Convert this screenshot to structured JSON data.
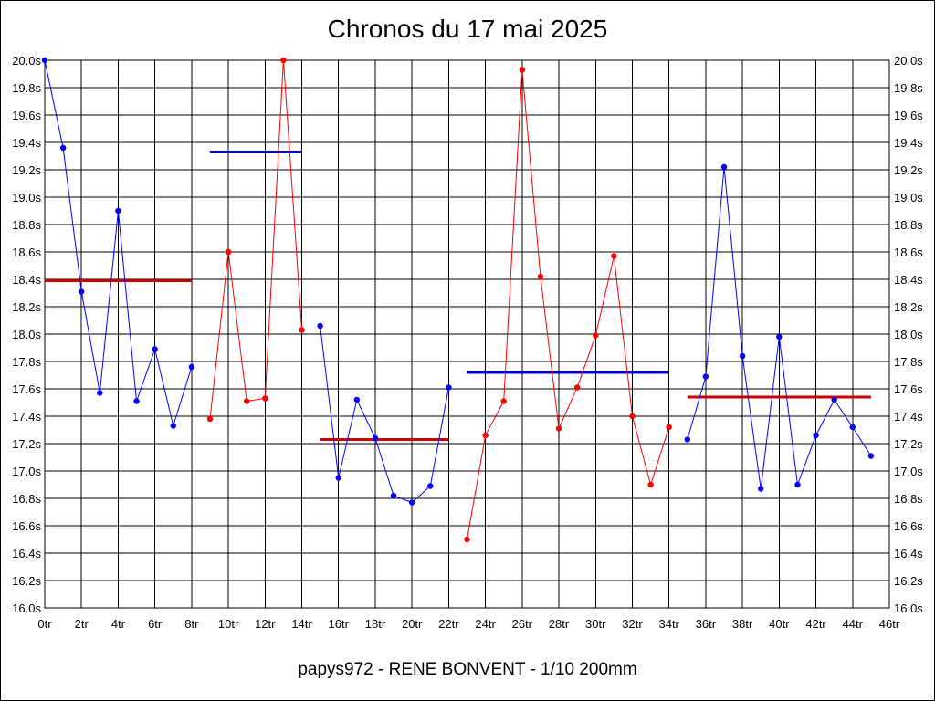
{
  "title": "Chronos du 17 mai 2025",
  "footer": "papys972 - RENE BONVENT - 1/10 200mm",
  "chart_data": {
    "type": "line",
    "title": "Chronos du 17 mai 2025",
    "xlabel": "",
    "ylabel": "",
    "xlim": [
      0,
      46
    ],
    "ylim": [
      16.0,
      20.0
    ],
    "grid": true,
    "x_ticks": [
      "0tr",
      "2tr",
      "4tr",
      "6tr",
      "8tr",
      "10tr",
      "12tr",
      "14tr",
      "16tr",
      "18tr",
      "20tr",
      "22tr",
      "24tr",
      "26tr",
      "28tr",
      "30tr",
      "32tr",
      "34tr",
      "36tr",
      "38tr",
      "40tr",
      "42tr",
      "44tr",
      "46tr"
    ],
    "y_ticks": [
      "16.0s",
      "16.2s",
      "16.4s",
      "16.6s",
      "16.8s",
      "17.0s",
      "17.2s",
      "17.4s",
      "17.6s",
      "17.8s",
      "18.0s",
      "18.2s",
      "18.4s",
      "18.6s",
      "18.8s",
      "19.0s",
      "19.2s",
      "19.4s",
      "19.6s",
      "19.8s",
      "20.0s"
    ],
    "series": [
      {
        "color": "#0000ff",
        "x": [
          0,
          1,
          2,
          3,
          4,
          5,
          6,
          7,
          8
        ],
        "y": [
          20.0,
          19.36,
          18.31,
          17.57,
          18.9,
          17.51,
          17.89,
          17.33,
          17.76
        ]
      },
      {
        "color": "#ff0000",
        "x": [
          9,
          10,
          11,
          12,
          13,
          14
        ],
        "y": [
          17.38,
          18.6,
          17.51,
          17.53,
          20.0,
          18.03
        ]
      },
      {
        "color": "#0000ff",
        "x": [
          15,
          16,
          17,
          18,
          19,
          20,
          21,
          22
        ],
        "y": [
          18.06,
          16.95,
          17.52,
          17.24,
          16.82,
          16.77,
          16.89,
          17.61
        ]
      },
      {
        "color": "#ff0000",
        "x": [
          23,
          24,
          25,
          26,
          27,
          28,
          29,
          30,
          31,
          32,
          33,
          34
        ],
        "y": [
          16.5,
          17.26,
          17.51,
          19.93,
          18.42,
          17.31,
          17.61,
          17.99,
          18.57,
          17.4,
          16.9,
          17.32
        ]
      },
      {
        "color": "#0000ff",
        "x": [
          35,
          36,
          37,
          38,
          39,
          40,
          41,
          42,
          43,
          44,
          45
        ],
        "y": [
          17.23,
          17.69,
          19.22,
          17.84,
          16.87,
          17.98,
          16.9,
          17.26,
          17.52,
          17.32,
          17.11
        ]
      }
    ],
    "averages": [
      {
        "color": "#cc0000",
        "x": [
          0,
          8
        ],
        "y": 18.39
      },
      {
        "color": "#0000cc",
        "x": [
          9,
          14
        ],
        "y": 19.33
      },
      {
        "color": "#cc0000",
        "x": [
          15,
          22
        ],
        "y": 17.23
      },
      {
        "color": "#0000cc",
        "x": [
          23,
          34
        ],
        "y": 17.72
      },
      {
        "color": "#cc0000",
        "x": [
          35,
          45
        ],
        "y": 17.54
      }
    ]
  }
}
